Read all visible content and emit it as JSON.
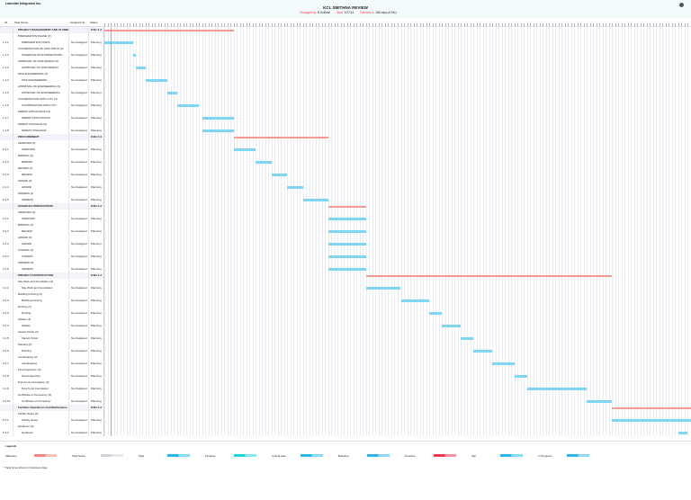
{
  "header": {
    "company": "Lakeside Integrated Inc.",
    "title": "KCL SMITHNA REVIEW",
    "meta": [
      {
        "key": "Managed by:",
        "value": "N Sullivan"
      },
      {
        "key": "Start:",
        "value": "1/27/14"
      },
      {
        "key": "Finished In:",
        "value": "186 days (6 Mo)"
      }
    ]
  },
  "columns": {
    "id": "ID",
    "name": "Task Name",
    "assigned": "Assigned To",
    "status": "Status"
  },
  "colors": {
    "task": "#7fd6f2",
    "summary": "#f59b93",
    "today": "#f28a82"
  },
  "timeline_days": 186,
  "today_day": 2,
  "rows": [
    {
      "type": "summary",
      "name": "PROJECT MANAGEMENT AND PLANNING",
      "status": "8 Mo 0 d",
      "start": 0,
      "end": 41
    },
    {
      "type": "group",
      "name": "PREPARATION PHASE (3)"
    },
    {
      "type": "task",
      "id": "1.1.1",
      "name": "PREPARATION TASKS",
      "assigned": "Not Assigned",
      "status": "Planning",
      "start": 0,
      "end": 9
    },
    {
      "type": "group",
      "name": "COORDINATION OF SITE VISITS (3)"
    },
    {
      "type": "task",
      "id": "1.1.2",
      "name": "SCHEDULE SITE INSPECTIONS",
      "assigned": "Not Assigned",
      "status": "Planning",
      "start": 9,
      "end": 10
    },
    {
      "type": "group",
      "name": "APPROVAL OF SITE DESIGN (3)"
    },
    {
      "type": "task",
      "id": "1.1.3",
      "name": "APPROVAL OF SITE DESIGN",
      "assigned": "Not Assigned",
      "status": "Planning",
      "start": 10,
      "end": 13
    },
    {
      "type": "group",
      "name": "SITE ENGINEERING (3)"
    },
    {
      "type": "task",
      "id": "1.1.4",
      "name": "SITE ENGINEERING",
      "assigned": "Not Assigned",
      "status": "Planning",
      "start": 13,
      "end": 20
    },
    {
      "type": "group",
      "name": "APPROVAL OF ENGINEERING (3)"
    },
    {
      "type": "task",
      "id": "1.1.5",
      "name": "APPROVAL OF ENGINEERING",
      "assigned": "Not Assigned",
      "status": "Planning",
      "start": 20,
      "end": 23
    },
    {
      "type": "group",
      "name": "COORDINATION WITH CITY (3)"
    },
    {
      "type": "task",
      "id": "1.1.6",
      "name": "COORDINATION WITH CITY",
      "assigned": "Not Assigned",
      "status": "Planning",
      "start": 23,
      "end": 30
    },
    {
      "type": "group",
      "name": "PERMIT APPLICATION (3)"
    },
    {
      "type": "task",
      "id": "1.1.7",
      "name": "PERMIT APPLICATION",
      "assigned": "Not Assigned",
      "status": "Planning",
      "start": 31,
      "end": 41
    },
    {
      "type": "group",
      "name": "PERMIT ISSUANCE (3)"
    },
    {
      "type": "task",
      "id": "1.1.8",
      "name": "PERMIT ISSUANCE",
      "assigned": "Not Assigned",
      "status": "Planning",
      "start": 31,
      "end": 41
    },
    {
      "type": "summary",
      "name": "PROCUREMENT",
      "status": "8 Mo 0 d",
      "start": 41,
      "end": 71
    },
    {
      "type": "group",
      "name": "VENDORS (3)"
    },
    {
      "type": "task",
      "id": "2.1.1",
      "name": "VENDORS",
      "assigned": "Not Assigned",
      "status": "Planning",
      "start": 41,
      "end": 48
    },
    {
      "type": "group",
      "name": "BIDDING (3)"
    },
    {
      "type": "task",
      "id": "2.1.2",
      "name": "BIDDING",
      "assigned": "Not Assigned",
      "status": "Planning",
      "start": 48,
      "end": 53
    },
    {
      "type": "group",
      "name": "REVIEW (3)"
    },
    {
      "type": "task",
      "id": "2.1.3",
      "name": "REVIEW",
      "assigned": "Not Assigned",
      "status": "Planning",
      "start": 53,
      "end": 58
    },
    {
      "type": "group",
      "name": "AWARD (3)"
    },
    {
      "type": "task",
      "id": "2.1.4",
      "name": "AWARD",
      "assigned": "Not Assigned",
      "status": "Planning",
      "start": 58,
      "end": 63
    },
    {
      "type": "group",
      "name": "ORDERS (3)"
    },
    {
      "type": "task",
      "id": "2.1.5",
      "name": "ORDERS",
      "assigned": "Not Assigned",
      "status": "Planning",
      "start": 63,
      "end": 71
    },
    {
      "type": "summary",
      "name": "SCHEDULE PREPARATION",
      "status": "8 Mo 0 d",
      "start": 71,
      "end": 83
    },
    {
      "type": "group",
      "name": "VENDORS (3)"
    },
    {
      "type": "task",
      "id": "3.1.1",
      "name": "VENDORS",
      "assigned": "Not Assigned",
      "status": "Planning",
      "start": 71,
      "end": 83
    },
    {
      "type": "group",
      "name": "BIDDING (3)"
    },
    {
      "type": "task",
      "id": "3.1.2",
      "name": "REVIEW",
      "assigned": "Not Assigned",
      "status": "Planning",
      "start": 71,
      "end": 83
    },
    {
      "type": "group",
      "name": "AWARD (3)"
    },
    {
      "type": "task",
      "id": "3.1.3",
      "name": "AWARD",
      "assigned": "Not Assigned",
      "status": "Planning",
      "start": 71,
      "end": 83
    },
    {
      "type": "group",
      "name": "OTHERS (3)"
    },
    {
      "type": "task",
      "id": "3.1.4",
      "name": "OTHERS",
      "assigned": "Not Assigned",
      "status": "Planning",
      "start": 71,
      "end": 83
    },
    {
      "type": "group",
      "name": "ORDERS (3)"
    },
    {
      "type": "task",
      "id": "3.1.5",
      "name": "ORDERS",
      "assigned": "Not Assigned",
      "status": "Planning",
      "start": 71,
      "end": 83
    },
    {
      "type": "summary",
      "name": "PROJECT CONSTRUCTION",
      "status": "8 Mo 0 d",
      "start": 83,
      "end": 161
    },
    {
      "type": "group",
      "name": "Site Work and Foundation (3)"
    },
    {
      "type": "task",
      "id": "4.1.1",
      "name": "Site Work and Foundation",
      "assigned": "Not Assigned",
      "status": "Planning",
      "start": 83,
      "end": 94
    },
    {
      "type": "group",
      "name": "Building Framing (3)"
    },
    {
      "type": "task",
      "id": "4.1.2",
      "name": "Building Framing",
      "assigned": "Not Assigned",
      "status": "Planning",
      "start": 94,
      "end": 103
    },
    {
      "type": "group",
      "name": "Roofing (3)"
    },
    {
      "type": "task",
      "id": "4.1.3",
      "name": "Roofing",
      "assigned": "Not Assigned",
      "status": "Planning",
      "start": 103,
      "end": 107
    },
    {
      "type": "group",
      "name": "Utilities (3)"
    },
    {
      "type": "task",
      "id": "4.1.4",
      "name": "Utilities",
      "assigned": "Not Assigned",
      "status": "Planning",
      "start": 107,
      "end": 113
    },
    {
      "type": "group",
      "name": "Interior Finish (3)"
    },
    {
      "type": "task",
      "id": "4.1.5",
      "name": "Interior Finish",
      "assigned": "Not Assigned",
      "status": "Planning",
      "start": 113,
      "end": 117
    },
    {
      "type": "group",
      "name": "Painting (3)"
    },
    {
      "type": "task",
      "id": "4.1.6",
      "name": "Painting",
      "assigned": "Not Assigned",
      "status": "Planning",
      "start": 117,
      "end": 123
    },
    {
      "type": "group",
      "name": "Landscaping (3)"
    },
    {
      "type": "task",
      "id": "4.1.7",
      "name": "Landscaping",
      "assigned": "Not Assigned",
      "status": "Planning",
      "start": 123,
      "end": 130
    },
    {
      "type": "group",
      "name": "Final Inspection (3)"
    },
    {
      "type": "task",
      "id": "4.1.8",
      "name": "Final Inspection",
      "assigned": "Not Assigned",
      "status": "Planning",
      "start": 130,
      "end": 134
    },
    {
      "type": "group",
      "name": "Punch List Completion (3)"
    },
    {
      "type": "task",
      "id": "4.1.9",
      "name": "Punch List Completion",
      "assigned": "Not Assigned",
      "status": "Planning",
      "start": 134,
      "end": 153
    },
    {
      "type": "group",
      "name": "Certificate of Occupancy (3)"
    },
    {
      "type": "task",
      "id": "4.1.10",
      "name": "Certificate of Occupancy",
      "assigned": "Not Assigned",
      "status": "Planning",
      "start": 153,
      "end": 161
    },
    {
      "type": "summary",
      "name": "Facilities Operations and Maintenance",
      "status": "8 Mo 0 d",
      "start": 161,
      "end": 186
    },
    {
      "type": "group",
      "name": "Facility Setup (3)"
    },
    {
      "type": "task",
      "id": "5.1.1",
      "name": "Facility Setup",
      "assigned": "Not Assigned",
      "status": "Planning",
      "start": 161,
      "end": 186
    },
    {
      "type": "group",
      "name": "Handover (3)"
    },
    {
      "type": "task",
      "id": "5.1.2",
      "name": "Handover",
      "assigned": "Not Assigned",
      "status": "Planning",
      "start": 182,
      "end": 185
    }
  ],
  "legend": {
    "title": "Legends",
    "items": [
      {
        "label": "Milestone",
        "color": "#f28a82"
      },
      {
        "label": "Task Notes",
        "color": "#d0d4da"
      },
      {
        "label": "Task",
        "color": "#29b6e8"
      },
      {
        "label": "Finished",
        "color": "#1fd6d6"
      },
      {
        "label": "Critical task",
        "color": "#29b6e8"
      },
      {
        "label": "Baseline",
        "color": "#29b6e8"
      },
      {
        "label": "Overdue",
        "color": "#f0344a"
      },
      {
        "label": "Slip",
        "color": "#29b6e8"
      },
      {
        "label": "In Progress",
        "color": "#29b6e8"
      }
    ]
  },
  "note": "* Task times shown in business days"
}
